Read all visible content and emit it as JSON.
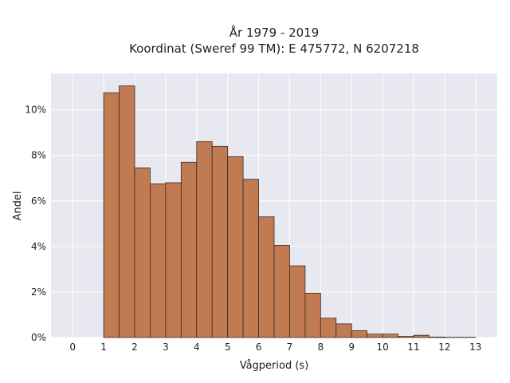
{
  "chart_data": {
    "type": "bar",
    "title_line1": "År 1979 - 2019",
    "title_line2": "Koordinat (Sweref 99 TM): E 475772, N 6207218",
    "xlabel": "Vågperiod (s)",
    "ylabel": "Andel",
    "bin_width": 0.5,
    "bin_starts": [
      0,
      0.5,
      1,
      1.5,
      2,
      2.5,
      3,
      3.5,
      4,
      4.5,
      5,
      5.5,
      6,
      6.5,
      7,
      7.5,
      8,
      8.5,
      9,
      9.5,
      10,
      10.5,
      11,
      11.5,
      12,
      12.5
    ],
    "values": [
      0.0,
      0.0,
      10.75,
      11.05,
      7.45,
      6.75,
      6.8,
      7.7,
      8.6,
      8.4,
      7.95,
      6.95,
      5.3,
      4.05,
      3.15,
      1.95,
      0.85,
      0.6,
      0.3,
      0.15,
      0.15,
      0.05,
      0.1,
      0.02,
      0.01,
      0.01
    ],
    "xticks": [
      "0",
      "1",
      "2",
      "3",
      "4",
      "5",
      "6",
      "7",
      "8",
      "9",
      "10",
      "11",
      "12",
      "13"
    ],
    "yticks": [
      "0%",
      "2%",
      "4%",
      "6%",
      "8%",
      "10%"
    ],
    "xlim": [
      -0.7,
      13.7
    ],
    "ylim": [
      0,
      11.6
    ],
    "grid": true,
    "colors": {
      "bar": "#c17b53",
      "edge": "#3a2a22",
      "plot_bg": "#e8e8f1",
      "grid": "#ffffff"
    }
  }
}
